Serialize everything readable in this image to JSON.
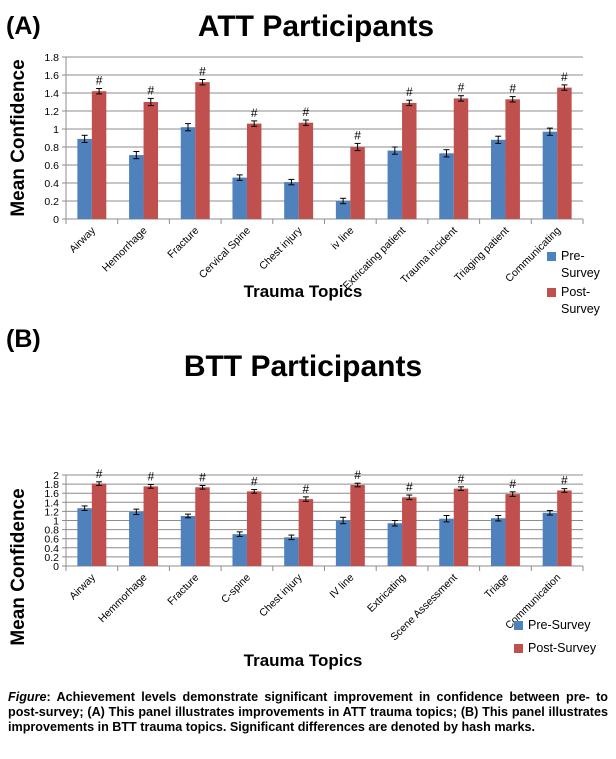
{
  "chart_data": [
    {
      "type": "bar",
      "panel_label": "(A)",
      "title": "ATT Participants",
      "xlabel": "Trauma Topics",
      "ylabel": "Mean Confidence",
      "ylim": [
        0,
        1.8
      ],
      "yticks": [
        "0",
        "0.2",
        "0.4",
        "0.6",
        "0.8",
        "1",
        "1.2",
        "1.4",
        "1.6",
        "1.8"
      ],
      "grid": true,
      "legend_position": "right",
      "significance_marker": "#",
      "categories": [
        "Airway",
        "Hemorrhage",
        "Fracture",
        "Cervical Spine",
        "Chest injury",
        "iv line",
        "Extricating patient",
        "Trauma incident",
        "Triaging patient",
        "Communicating"
      ],
      "series": [
        {
          "name": "Pre-Survey",
          "legend_lines": [
            "Pre-",
            "Survey"
          ],
          "color": "#4f81bd",
          "values": [
            0.89,
            0.71,
            1.02,
            0.46,
            0.41,
            0.2,
            0.76,
            0.73,
            0.88,
            0.97
          ],
          "errors": [
            0.04,
            0.04,
            0.04,
            0.03,
            0.03,
            0.03,
            0.04,
            0.04,
            0.04,
            0.04
          ]
        },
        {
          "name": "Post-Survey",
          "legend_lines": [
            "Post-",
            "Survey"
          ],
          "color": "#c0504d",
          "values": [
            1.42,
            1.3,
            1.52,
            1.06,
            1.07,
            0.8,
            1.29,
            1.34,
            1.33,
            1.46
          ],
          "errors": [
            0.03,
            0.04,
            0.03,
            0.03,
            0.03,
            0.04,
            0.03,
            0.03,
            0.03,
            0.03
          ]
        }
      ]
    },
    {
      "type": "bar",
      "panel_label": "(B)",
      "title": "BTT Participants",
      "xlabel": "Trauma Topics",
      "ylabel": "Mean Confidence",
      "ylim": [
        0,
        2
      ],
      "yticks": [
        "0",
        "0.2",
        "0.4",
        "0.6",
        "0.8",
        "1",
        "1.2",
        "1.4",
        "1.6",
        "1.8",
        "2"
      ],
      "grid": true,
      "legend_position": "bottom-right",
      "significance_marker": "#",
      "categories": [
        "Airway",
        "Hemmorhage",
        "Fracture",
        "C-spine",
        "Chest injury",
        "IV line",
        "Extricating",
        "Scene Assessment",
        "Triage",
        "Communication"
      ],
      "series": [
        {
          "name": "Pre-Survey",
          "legend_lines": [
            "Pre-Survey"
          ],
          "color": "#4f81bd",
          "values": [
            1.27,
            1.19,
            1.1,
            0.7,
            0.63,
            1.0,
            0.94,
            1.04,
            1.05,
            1.17
          ],
          "errors": [
            0.05,
            0.06,
            0.04,
            0.05,
            0.05,
            0.07,
            0.06,
            0.07,
            0.06,
            0.05
          ]
        },
        {
          "name": "Post-Survey",
          "legend_lines": [
            "Post-Survey"
          ],
          "color": "#c0504d",
          "values": [
            1.81,
            1.75,
            1.73,
            1.64,
            1.47,
            1.78,
            1.51,
            1.7,
            1.58,
            1.66
          ],
          "errors": [
            0.04,
            0.04,
            0.04,
            0.04,
            0.05,
            0.04,
            0.05,
            0.04,
            0.05,
            0.04
          ]
        }
      ]
    }
  ],
  "caption": {
    "lead": "Figure",
    "text": ": Achievement levels demonstrate significant improvement in confidence between pre- to post-survey;  (A) This panel illustrates improvements in ATT trauma topics; (B) This panel illustrates improvements in BTT trauma topics. Significant differences are denoted by hash marks."
  }
}
